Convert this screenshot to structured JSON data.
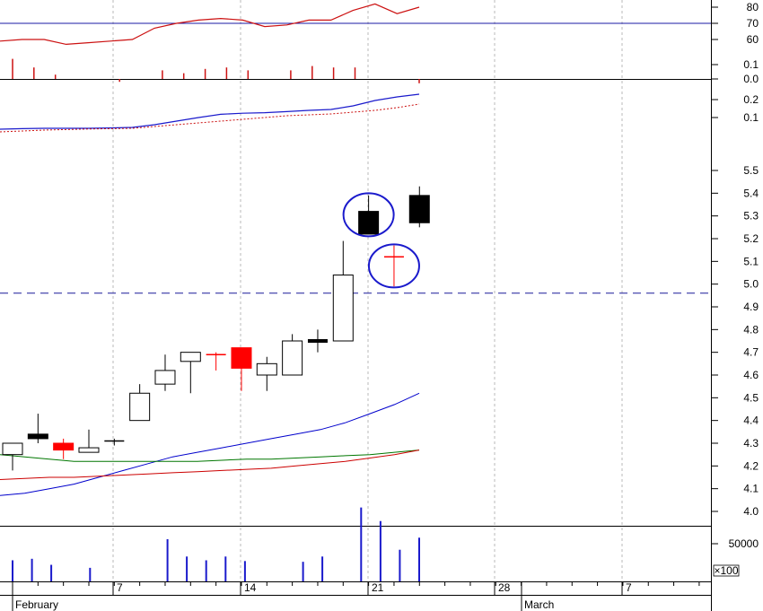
{
  "chart_data": {
    "type": "candlestick",
    "x_axis": {
      "month_labels": [
        "February",
        "March"
      ],
      "day_labels": [
        "7",
        "14",
        "21",
        "28",
        "7"
      ]
    },
    "panels": [
      {
        "name": "oscillator",
        "y_ticks": [
          "80",
          "70",
          "60"
        ],
        "reference_level": 70,
        "line": [
          59,
          60,
          60,
          57,
          58,
          59,
          60,
          67,
          70,
          72,
          73,
          72,
          68,
          69,
          72,
          72,
          78,
          82,
          76,
          80
        ]
      },
      {
        "name": "histogram",
        "y_ticks": [
          "0.1",
          "0.0"
        ],
        "bars": [
          0.14,
          0.08,
          0.03,
          0.0,
          0.0,
          -0.02,
          0.0,
          0.06,
          0.04,
          0.07,
          0.08,
          0.06,
          0.0,
          0.06,
          0.09,
          0.08,
          0.08,
          0.0,
          0.0,
          -0.03
        ]
      },
      {
        "name": "macd",
        "y_ticks": [
          "0.2",
          "0.1"
        ],
        "line": [
          0.035,
          0.038,
          0.04,
          0.04,
          0.04,
          0.042,
          0.045,
          0.06,
          0.08,
          0.1,
          0.118,
          0.124,
          0.127,
          0.133,
          0.14,
          0.145,
          0.165,
          0.195,
          0.215,
          0.23
        ],
        "signal": [
          0.02,
          0.025,
          0.03,
          0.033,
          0.036,
          0.038,
          0.04,
          0.05,
          0.06,
          0.07,
          0.08,
          0.09,
          0.1,
          0.11,
          0.115,
          0.12,
          0.13,
          0.14,
          0.155,
          0.175
        ]
      },
      {
        "name": "price",
        "y_ticks": [
          "5.5",
          "5.4",
          "5.3",
          "5.2",
          "5.1",
          "5.0",
          "4.9",
          "4.8",
          "4.7",
          "4.6",
          "4.5",
          "4.4",
          "4.3",
          "4.2",
          "4.1",
          "4.0"
        ],
        "reference_level": 4.96,
        "candles": [
          {
            "o": 4.25,
            "h": 4.3,
            "l": 4.18,
            "c": 4.3,
            "color": "white"
          },
          {
            "o": 4.34,
            "h": 4.43,
            "l": 4.3,
            "c": 4.32,
            "color": "black"
          },
          {
            "o": 4.3,
            "h": 4.32,
            "l": 4.23,
            "c": 4.27,
            "color": "red"
          },
          {
            "o": 4.26,
            "h": 4.36,
            "l": 4.26,
            "c": 4.28,
            "color": "white"
          },
          {
            "o": 4.3,
            "h": 4.32,
            "l": 4.29,
            "c": 4.31,
            "color": "white"
          },
          {
            "o": 4.4,
            "h": 4.56,
            "l": 4.4,
            "c": 4.52,
            "color": "white"
          },
          {
            "o": 4.56,
            "h": 4.69,
            "l": 4.53,
            "c": 4.62,
            "color": "white"
          },
          {
            "o": 4.66,
            "h": 4.7,
            "l": 4.52,
            "c": 4.7,
            "color": "white"
          },
          {
            "o": 4.69,
            "h": 4.7,
            "l": 4.62,
            "c": 4.69,
            "color": "red"
          },
          {
            "o": 4.72,
            "h": 4.72,
            "l": 4.53,
            "c": 4.63,
            "color": "red"
          },
          {
            "o": 4.6,
            "h": 4.68,
            "l": 4.53,
            "c": 4.65,
            "color": "white"
          },
          {
            "o": 4.6,
            "h": 4.78,
            "l": 4.6,
            "c": 4.75,
            "color": "white"
          },
          {
            "o": 4.75,
            "h": 4.8,
            "l": 4.7,
            "c": 4.75,
            "color": "black"
          },
          {
            "o": 4.75,
            "h": 5.19,
            "l": 4.75,
            "c": 5.04,
            "color": "white"
          },
          {
            "o": 5.32,
            "h": 5.39,
            "l": 5.22,
            "c": 5.22,
            "color": "black"
          },
          {
            "o": 5.12,
            "h": 5.17,
            "l": 4.99,
            "c": 5.12,
            "color": "red"
          },
          {
            "o": 5.39,
            "h": 5.43,
            "l": 5.25,
            "c": 5.27,
            "color": "black"
          }
        ],
        "moving_averages": [
          {
            "color": "#0000cc",
            "values": [
              4.07,
              4.08,
              4.1,
              4.12,
              4.15,
              4.18,
              4.21,
              4.24,
              4.26,
              4.28,
              4.3,
              4.32,
              4.34,
              4.36,
              4.39,
              4.43,
              4.47,
              4.52
            ]
          },
          {
            "color": "#007700",
            "values": [
              4.25,
              4.24,
              4.23,
              4.22,
              4.22,
              4.22,
              4.22,
              4.22,
              4.22,
              4.225,
              4.23,
              4.23,
              4.235,
              4.24,
              4.245,
              4.25,
              4.26,
              4.27
            ]
          },
          {
            "color": "#cc0000",
            "values": [
              4.14,
              4.145,
              4.15,
              4.15,
              4.155,
              4.16,
              4.165,
              4.17,
              4.175,
              4.18,
              4.185,
              4.19,
              4.2,
              4.21,
              4.22,
              4.235,
              4.25,
              4.27
            ]
          }
        ],
        "highlighted_candles": [
          14,
          15
        ]
      },
      {
        "name": "volume",
        "y_ticks": [
          "50000"
        ],
        "unit_label": "×100",
        "values": [
          280,
          300,
          220,
          0,
          180,
          0,
          0,
          0,
          560,
          330,
          280,
          330,
          270,
          0,
          0,
          260,
          330,
          0,
          980,
          800,
          420,
          580
        ]
      }
    ]
  }
}
